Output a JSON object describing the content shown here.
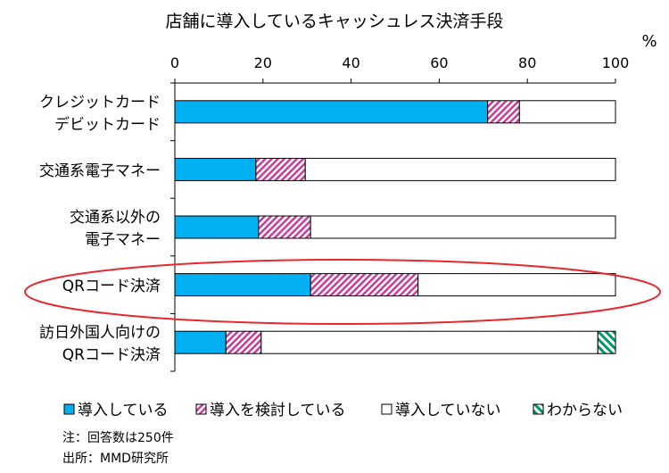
{
  "chart_data": {
    "type": "bar",
    "orientation": "horizontal",
    "stacked": true,
    "title": "店舗に導入しているキャッシュレス決済手段",
    "unit": "%",
    "xlim": [
      0,
      100
    ],
    "xticks": [
      "0",
      "20",
      "40",
      "60",
      "80",
      "100"
    ],
    "categories": [
      [
        "クレジットカード",
        "デビットカード"
      ],
      [
        "交通系電子マネー"
      ],
      [
        "交通系以外の",
        "電子マネー"
      ],
      [
        "QRコード決済"
      ],
      [
        "訪日外国人向けの",
        "QRコード決済"
      ]
    ],
    "series": [
      {
        "name": "導入している",
        "color": "#00B0F0",
        "values": [
          71,
          18.4,
          19,
          30.8,
          11.6
        ]
      },
      {
        "name": "導入を検討している",
        "color": "#CC3399",
        "values": [
          7.2,
          11.2,
          11.8,
          24.4,
          8
        ]
      },
      {
        "name": "導入していない",
        "color": "#FFFFFF",
        "values": [
          21.8,
          70.4,
          69.2,
          44.8,
          76.4
        ]
      },
      {
        "name": "わからない",
        "color": "#009966",
        "values": [
          0,
          0,
          0,
          0,
          4
        ]
      }
    ],
    "highlight": "QRコード決済",
    "grid": false,
    "legend": "bottom"
  },
  "notes": [
    "注：回答数は250件",
    "出所：MMD研究所"
  ]
}
